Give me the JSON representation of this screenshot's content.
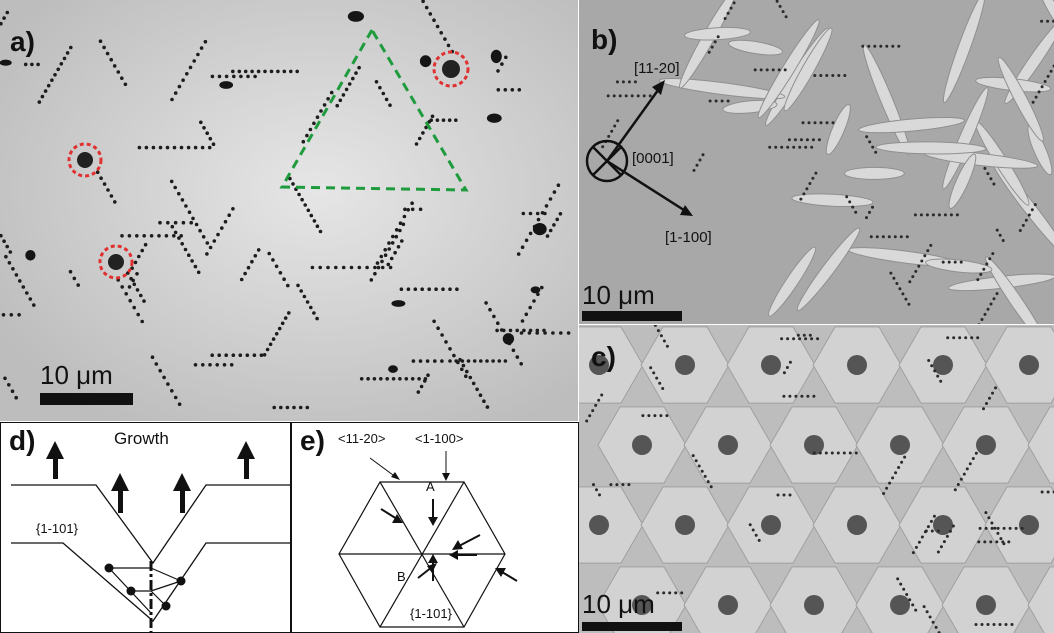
{
  "figure": {
    "panel_a": {
      "label": "a)",
      "scale_text": "10 μm"
    },
    "panel_b": {
      "label": "b)",
      "scale_text": "10 μm",
      "direction_11_20": "[11-20]",
      "direction_0001": "[0001]",
      "direction_1_100": "[1-100]"
    },
    "panel_c": {
      "label": "c)",
      "scale_text": "10 μm"
    },
    "panel_d": {
      "label": "d)",
      "growth_text": "Growth",
      "facet_text": "{1-101}"
    },
    "panel_e": {
      "label": "e)",
      "direction_11_20": "<11-20>",
      "direction_1_100": "<1-100>",
      "point_a": "A",
      "point_b": "B",
      "facet_text": "{1-101}"
    },
    "colors": {
      "highlight_circle": "#e03030",
      "highlight_triangle": "#1e9b3c"
    }
  }
}
